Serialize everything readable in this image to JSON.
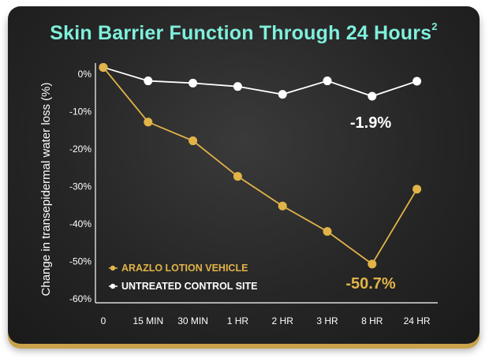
{
  "title": "Skin Barrier Function Through 24 Hours",
  "title_sup": "2",
  "chart_data": {
    "type": "line",
    "ylabel": "Change in transepidermal water loss  (%)",
    "categories": [
      "0",
      "15 MIN",
      "30 MIN",
      "1 HR",
      "2 HR",
      "3 HR",
      "8 HR",
      "24 HR"
    ],
    "yticks": [
      "0%",
      "-10%",
      "-20%",
      "-30%",
      "-40%",
      "-50%",
      "-60%"
    ],
    "ylim": [
      -60,
      0
    ],
    "series": [
      {
        "name": "ARAZLO LOTION VEHICLE",
        "color": "#e2b448",
        "values": [
          1.8,
          -12.8,
          -17.8,
          -27.3,
          -35.2,
          -42.0,
          -50.7,
          -30.7
        ]
      },
      {
        "name": "UNTREATED CONTROL SITE",
        "color": "#ffffff",
        "values": [
          1.8,
          -1.8,
          -2.4,
          -3.3,
          -5.4,
          -1.8,
          -5.9,
          -1.9
        ]
      }
    ],
    "annotations": [
      {
        "text": "-1.9%",
        "color": "#ffffff",
        "series": 1
      },
      {
        "text": "-50.7%",
        "color": "#e2b448",
        "series": 0
      }
    ],
    "legend": "bottom-left"
  }
}
